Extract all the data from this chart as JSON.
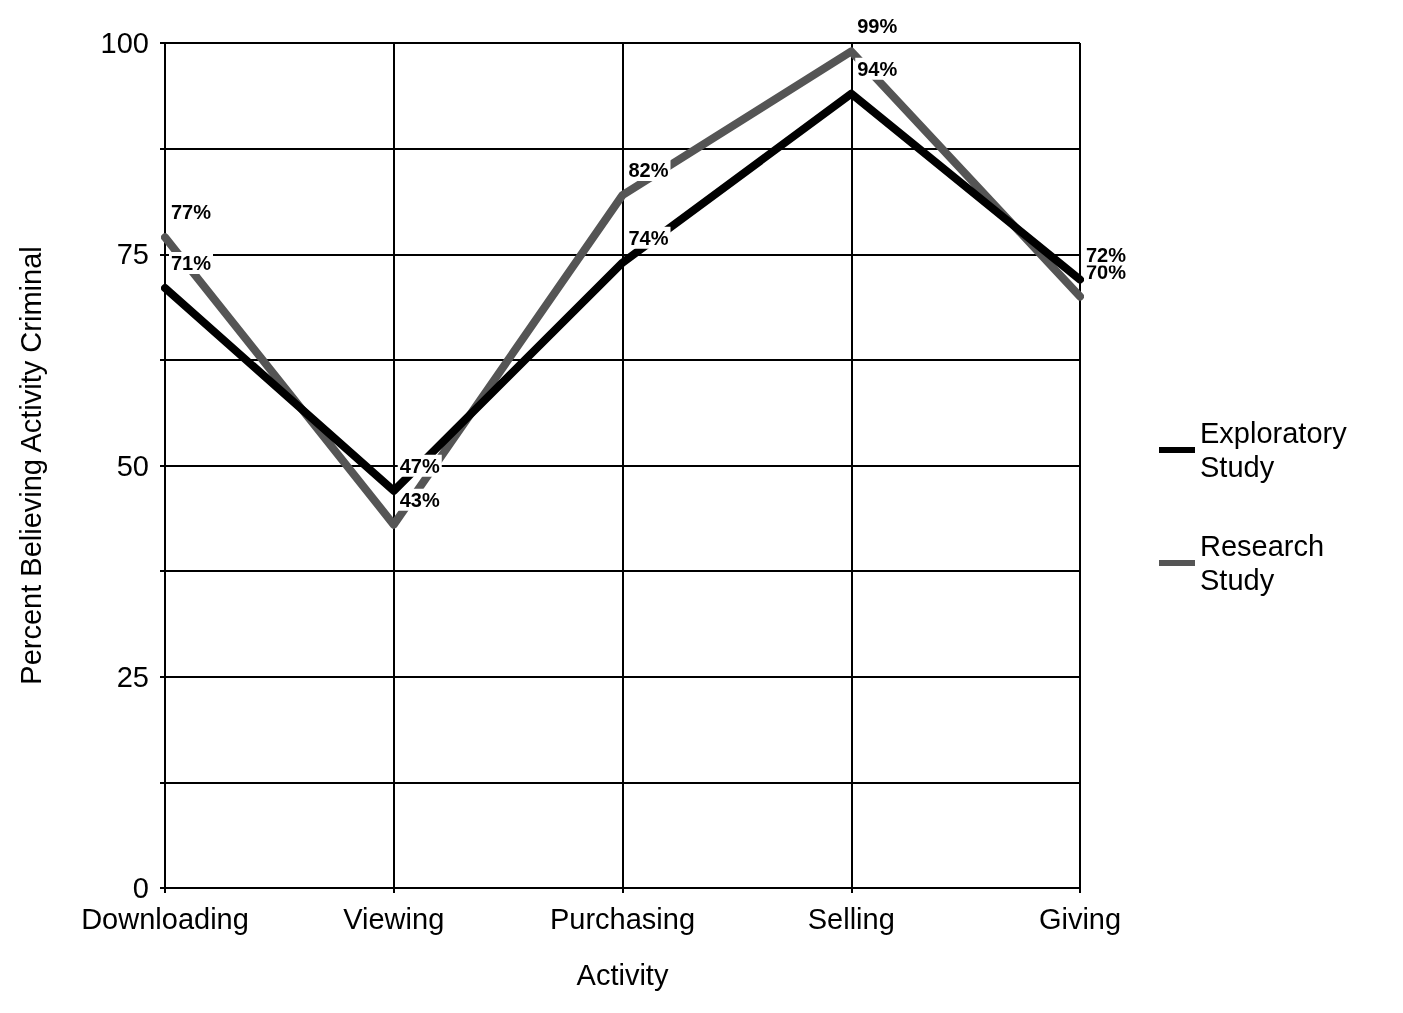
{
  "chart_data": {
    "type": "line",
    "xlabel": "Activity",
    "ylabel": "Percent Believing Activity Criminal",
    "categories": [
      "Downloading",
      "Viewing",
      "Purchasing",
      "Selling",
      "Giving"
    ],
    "series": [
      {
        "name": "Exploratory Study",
        "color": "#000000",
        "values": [
          71,
          47,
          74,
          94,
          72
        ],
        "value_labels": [
          "71%",
          "47%",
          "74%",
          "94%",
          "72%"
        ]
      },
      {
        "name": "Research Study",
        "color": "#555555",
        "values": [
          77,
          43,
          82,
          99,
          70
        ],
        "value_labels": [
          "77%",
          "43%",
          "82%",
          "99%",
          "70%"
        ]
      }
    ],
    "ylim": [
      0,
      100
    ],
    "yticks": [
      0,
      {
        "value": 12.5,
        "label": null
      },
      25,
      {
        "value": 37.5,
        "label": null
      },
      50,
      {
        "value": 62.5,
        "label": null
      },
      75,
      {
        "value": 87.5,
        "label": null
      },
      100
    ],
    "grid": true,
    "legend": "right",
    "marker": "none",
    "line_style": "solid"
  }
}
